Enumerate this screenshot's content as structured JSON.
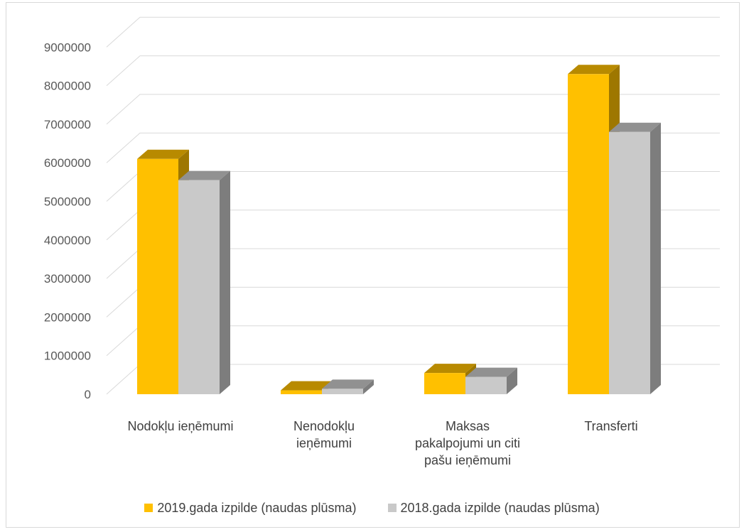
{
  "chart_data": {
    "type": "bar",
    "categories": [
      [
        "Nodokļu ieņēmumi"
      ],
      [
        "Nenodokļu",
        "ieņēmumi"
      ],
      [
        "Maksas",
        "pakalpojumi un citi",
        "pašu ieņēmumi"
      ],
      [
        "Transferti"
      ]
    ],
    "series": [
      {
        "name": "2019.gada izpilde (naudas plūsma)",
        "values": [
          6100000,
          100000,
          550000,
          8300000
        ],
        "color": "#FFC000"
      },
      {
        "name": "2018.gada izpilde (naudas plūsma)",
        "values": [
          5550000,
          140000,
          450000,
          6800000
        ],
        "color": "#C9C9C9"
      }
    ],
    "ylim": [
      0,
      9000000
    ],
    "yticks": [
      "0",
      "1000000",
      "2000000",
      "3000000",
      "4000000",
      "5000000",
      "6000000",
      "7000000",
      "8000000",
      "9000000"
    ],
    "grid": true,
    "legend_position": "bottom",
    "style": "3d-clustered-column"
  }
}
